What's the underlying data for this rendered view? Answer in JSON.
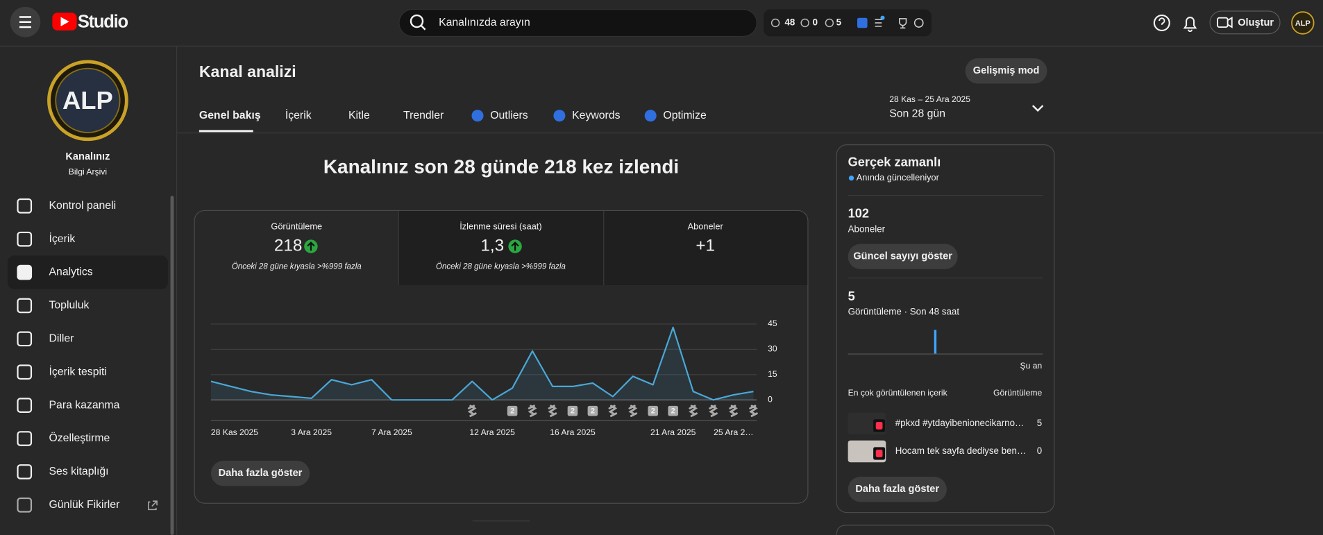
{
  "header": {
    "logo_text": "Studio",
    "search_placeholder": "Kanalınızda arayın",
    "extension_stats": [
      48,
      0,
      5
    ],
    "create_button": "Oluştur"
  },
  "sidebar": {
    "avatar_text": "ALP",
    "channel_name": "Kanalınız",
    "channel_subtitle": "Bilgi Arşivi",
    "nav": [
      "Kontrol paneli",
      "İçerik",
      "Analytics",
      "Topluluk",
      "Diller",
      "İçerik tespiti",
      "Para kazanma",
      "Özelleştirme",
      "Ses kitaplığı",
      "Günlük Fikirler"
    ],
    "active": 2
  },
  "page": {
    "title": "Kanal analizi",
    "advanced_button": "Gelişmiş mod",
    "tabs": [
      "Genel bakış",
      "İçerik",
      "Kitle",
      "Trendler",
      "Outliers",
      "Keywords",
      "Optimize"
    ],
    "active_tab": 0,
    "date_range": "28 Kas – 25 Ara 2025",
    "period": "Son 28 gün"
  },
  "overview": {
    "headline": "Kanalınız son 28 günde 218 kez izlendi",
    "metrics": [
      {
        "label": "Görüntüleme",
        "value": 218,
        "trend_up": true,
        "comparison": "Önceki 28 güne kıyasla >%999 fazla"
      },
      {
        "label": "İzlenme süresi (saat)",
        "value": "1,3",
        "trend_up": true,
        "comparison": "Önceki 28 güne kıyasla >%999 fazla"
      },
      {
        "label": "Aboneler",
        "value": "+1"
      }
    ],
    "more_button": "Daha fazla göster"
  },
  "chart_data": {
    "type": "line",
    "categories": [
      "28 Kas 2025",
      null,
      null,
      null,
      null,
      "3 Ara 2025",
      null,
      null,
      null,
      "7 Ara 2025",
      null,
      null,
      null,
      null,
      "12 Ara 2025",
      null,
      null,
      null,
      "16 Ara 2025",
      null,
      null,
      null,
      null,
      "21 Ara 2025",
      null,
      null,
      null,
      "25 Ara 2…"
    ],
    "values": [
      11,
      8,
      5,
      3,
      2,
      1,
      12,
      9,
      12,
      0,
      0,
      0,
      0,
      11,
      0,
      7,
      29,
      8,
      8,
      10,
      2,
      14,
      9,
      43,
      5,
      0,
      3,
      5
    ],
    "uploads": [
      null,
      null,
      null,
      null,
      null,
      null,
      null,
      null,
      null,
      null,
      null,
      null,
      null,
      1,
      null,
      2,
      1,
      1,
      2,
      2,
      1,
      1,
      2,
      2,
      1,
      1,
      1,
      1
    ],
    "color": "#4aa8d8",
    "ylim": [
      0,
      45
    ],
    "yticks": [
      0,
      15,
      30,
      45
    ],
    "grid": true
  },
  "realtime": {
    "title": "Gerçek zamanlı",
    "status": "Anında güncelleniyor",
    "subscribers": 102,
    "subscribers_label": "Aboneler",
    "show_count_button": "Güncel sayıyı göster",
    "views": 5,
    "views_label": "Görüntüleme · Son 48 saat",
    "chart_values": [
      0,
      0,
      0,
      0,
      0,
      0,
      0,
      0,
      0,
      0,
      0,
      0,
      0,
      0,
      0,
      0,
      0,
      0,
      0,
      0,
      0,
      5,
      0,
      0,
      0,
      0,
      0,
      0,
      0,
      0,
      0,
      0,
      0,
      0,
      0,
      0,
      0,
      0,
      0,
      0,
      0,
      0,
      0,
      0,
      0,
      0,
      0,
      0
    ],
    "now_label": "Şu an",
    "top_content_label": "En çok görüntülenen içerik",
    "top_content_metric": "Görüntüleme",
    "top_content": [
      {
        "title": "#pkxd #ytdayibenionecikarno…",
        "views": 5
      },
      {
        "title": "Hocam tek sayfa dediyse ben…",
        "views": 0
      }
    ],
    "more_button": "Daha fazla göster"
  }
}
